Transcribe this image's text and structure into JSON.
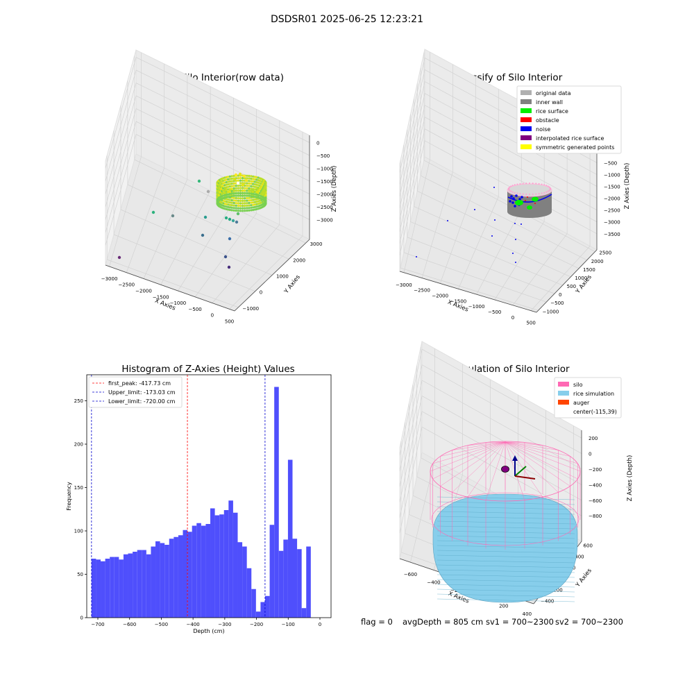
{
  "suptitle": "DSDSR01 2025-06-25 12:23:21",
  "footer": {
    "flag": "flag = 0",
    "avg_depth": "avgDepth = 805 cm",
    "sv1": "sv1 = 700~2300",
    "sv2": "sv2 = 700~2300"
  },
  "colors": {
    "hist_bar": "#4f4ffc",
    "first_peak": "#ff0000",
    "limit_lines": "#0000cc",
    "silo": "#ff69b4",
    "rice": "#87ceeb",
    "auger": "#ff4500",
    "inner_wall": "#808080",
    "rice_surface": "#00ee00",
    "noise": "#0000ee",
    "original": "#b0b0b0",
    "interpolated": "#800080",
    "symmetric": "#ffff00"
  },
  "chart_data": [
    {
      "type": "scatter",
      "title": "3D Plot of Silo Interior(row data)",
      "xlabel": "X Axies",
      "ylabel": "Y Axies",
      "zlabel": "Z Axies (Depth)",
      "x_ticks": [
        "−3000",
        "−2500",
        "−2000",
        "−1500",
        "−1000",
        "−500",
        "0",
        "500"
      ],
      "y_ticks": [
        "−1000",
        "0",
        "1000",
        "2000",
        "3000"
      ],
      "z_ticks": [
        "0",
        "−500",
        "−1000",
        "−1500",
        "−2000",
        "−2500",
        "−3000"
      ],
      "colormap": "viridis"
    },
    {
      "type": "scatter",
      "title": "3D classify of Silo Interior",
      "xlabel": "X Axies",
      "ylabel": "Y Axies",
      "zlabel": "Z Axies (Depth)",
      "x_ticks": [
        "−3000",
        "−2500",
        "−2000",
        "−1500",
        "−1000",
        "−500",
        "0",
        "500"
      ],
      "y_ticks": [
        "−1000",
        "−500",
        "0",
        "500",
        "1000",
        "1500",
        "2000",
        "2500"
      ],
      "z_ticks": [
        "0",
        "−500",
        "−1000",
        "−1500",
        "−2000",
        "−2500",
        "−3000",
        "−3500"
      ],
      "legend_position": "upper-right",
      "legend": [
        {
          "label": "original data",
          "color": "#b0b0b0"
        },
        {
          "label": "inner wall",
          "color": "#808080"
        },
        {
          "label": "rice surface",
          "color": "#00ee00"
        },
        {
          "label": "obstacle",
          "color": "#ff0000"
        },
        {
          "label": "noise",
          "color": "#0000ee"
        },
        {
          "label": "interpolated rice surface",
          "color": "#800080"
        },
        {
          "label": "symmetric generated points",
          "color": "#ffff00"
        }
      ]
    },
    {
      "type": "bar",
      "title": "Histogram of Z-Axies (Height) Values",
      "xlabel": "Depth (cm)",
      "ylabel": "Frequency",
      "xlim": [
        -735,
        35
      ],
      "ylim": [
        0,
        280
      ],
      "x_ticks": [
        -700,
        -600,
        -500,
        -400,
        -300,
        -200,
        -100,
        0
      ],
      "x_tick_labels": [
        "−700",
        "−600",
        "−500",
        "−400",
        "−300",
        "−200",
        "−100",
        "0"
      ],
      "y_ticks": [
        0,
        50,
        100,
        150,
        200,
        250
      ],
      "y_tick_labels": [
        "0",
        "50",
        "100",
        "150",
        "200",
        "250"
      ],
      "bin_start": -720,
      "bin_width": 14.4,
      "values": [
        68,
        67,
        65,
        68,
        70,
        70,
        67,
        73,
        74,
        76,
        78,
        78,
        73,
        82,
        88,
        86,
        84,
        91,
        93,
        95,
        101,
        99,
        106,
        109,
        106,
        108,
        126,
        118,
        119,
        124,
        135,
        121,
        87,
        82,
        57,
        33,
        7,
        18,
        25,
        107,
        266,
        77,
        90,
        182,
        91,
        79,
        11,
        82
      ],
      "legend_position": "upper-left",
      "lines": [
        {
          "label": "first_peak: -417.73 cm",
          "x": -417.73,
          "color": "#ff0000"
        },
        {
          "label": "Upper_limit: -173.03 cm",
          "x": -173.03,
          "color": "#0000cc"
        },
        {
          "label": "Lower_limit: -720.00 cm",
          "x": -720.0,
          "color": "#0000cc"
        }
      ]
    },
    {
      "type": "scatter",
      "title": "3D simulation of Silo Interior",
      "xlabel": "X Axies",
      "ylabel": "Y Axies",
      "zlabel": "Z Axies (Depth)",
      "x_ticks": [
        "−600",
        "−400",
        "−200",
        "0",
        "200",
        "400"
      ],
      "y_ticks": [
        "−400",
        "−200",
        "0",
        "200",
        "400",
        "600"
      ],
      "z_ticks": [
        "200",
        "0",
        "−200",
        "−400",
        "−600",
        "−800"
      ],
      "legend_position": "upper-right",
      "legend": [
        {
          "label": "silo",
          "color": "#ff69b4"
        },
        {
          "label": "rice simulation",
          "color": "#87ceeb"
        },
        {
          "label": "auger",
          "color": "#ff4500"
        },
        {
          "label": "center(-115,39)",
          "color": "none"
        }
      ]
    }
  ]
}
